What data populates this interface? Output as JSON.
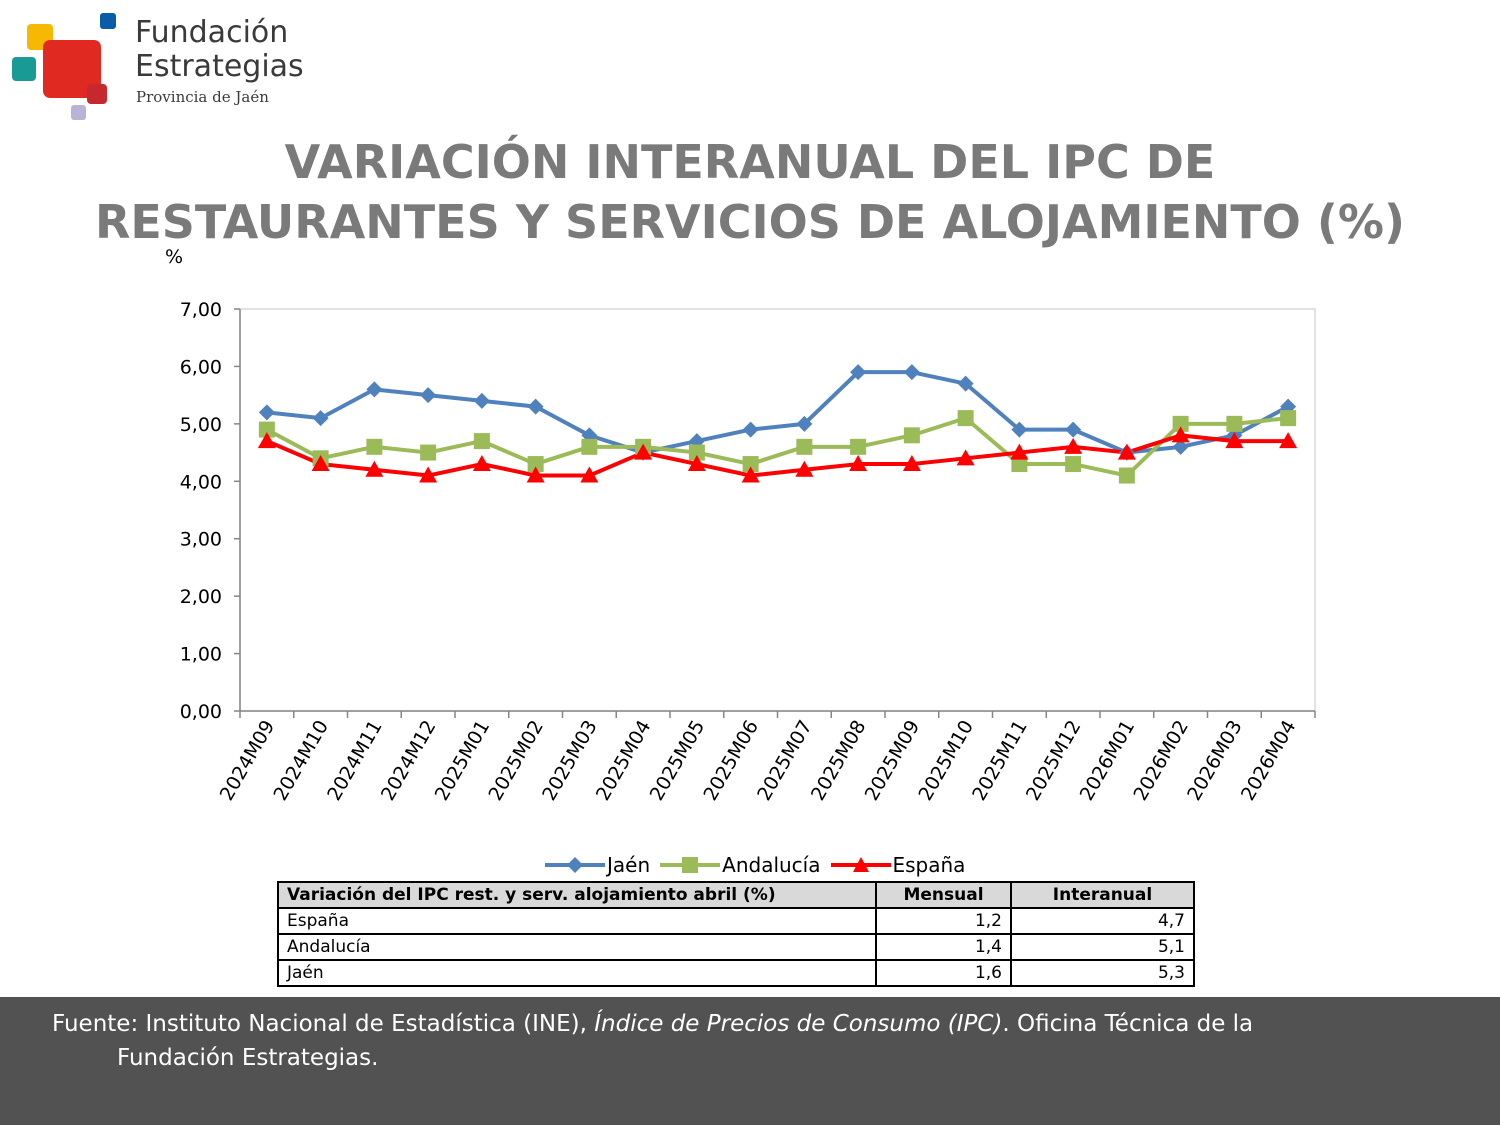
{
  "logo": {
    "line1": "Fundación",
    "line2": "Estrategias",
    "line3": "Provincia de Jaén",
    "colors": [
      "#f6b800",
      "#0a5ca8",
      "#1a9a95",
      "#e02a21",
      "#c7282e",
      "#b9b3d6"
    ]
  },
  "title": {
    "line1": "VARIACIÓN INTERANUAL DEL IPC DE",
    "line2": "RESTAURANTES Y SERVICIOS DE ALOJAMIENTO (%)"
  },
  "chart_data": {
    "type": "line",
    "ylabel": "%",
    "ylim": [
      0,
      7
    ],
    "yticks": [
      "0,00",
      "1,00",
      "2,00",
      "3,00",
      "4,00",
      "5,00",
      "6,00",
      "7,00"
    ],
    "categories": [
      "2024M09",
      "2024M10",
      "2024M11",
      "2024M12",
      "2025M01",
      "2025M02",
      "2025M03",
      "2025M04",
      "2025M05",
      "2025M06",
      "2025M07",
      "2025M08",
      "2025M09",
      "2025M10",
      "2025M11",
      "2025M12",
      "2026M01",
      "2026M02",
      "2026M03",
      "2026M04"
    ],
    "series": [
      {
        "name": "Jaén",
        "color": "#4f81bd",
        "marker": "diamond",
        "values": [
          5.2,
          5.1,
          5.6,
          5.5,
          5.4,
          5.3,
          4.8,
          4.5,
          4.7,
          4.9,
          5.0,
          5.9,
          5.9,
          5.7,
          4.9,
          4.9,
          4.5,
          4.6,
          4.8,
          5.3
        ]
      },
      {
        "name": "Andalucía",
        "color": "#9bbb59",
        "marker": "square",
        "values": [
          4.9,
          4.4,
          4.6,
          4.5,
          4.7,
          4.3,
          4.6,
          4.6,
          4.5,
          4.3,
          4.6,
          4.6,
          4.8,
          5.1,
          4.3,
          4.3,
          4.1,
          5.0,
          5.0,
          5.1
        ]
      },
      {
        "name": "España",
        "color": "#ff0000",
        "marker": "triangle",
        "values": [
          4.7,
          4.3,
          4.2,
          4.1,
          4.3,
          4.1,
          4.1,
          4.5,
          4.3,
          4.1,
          4.2,
          4.3,
          4.3,
          4.4,
          4.5,
          4.6,
          4.5,
          4.8,
          4.7,
          4.7
        ]
      }
    ],
    "grid": false,
    "legend": "bottom"
  },
  "summary_table": {
    "headers": [
      "Variación del IPC rest. y serv. alojamiento abril (%)",
      "Mensual",
      "Interanual"
    ],
    "rows": [
      [
        "España",
        "1,2",
        "4,7"
      ],
      [
        "Andalucía",
        "1,4",
        "5,1"
      ],
      [
        "Jaén",
        "1,6",
        "5,3"
      ]
    ]
  },
  "footer": {
    "prefix": "Fuente: Instituto Nacional de Estadística (INE), ",
    "italic": "Índice de Precios de Consumo (IPC)",
    "suffix": ". Oficina Técnica de la",
    "line2": "Fundación Estrategias."
  }
}
